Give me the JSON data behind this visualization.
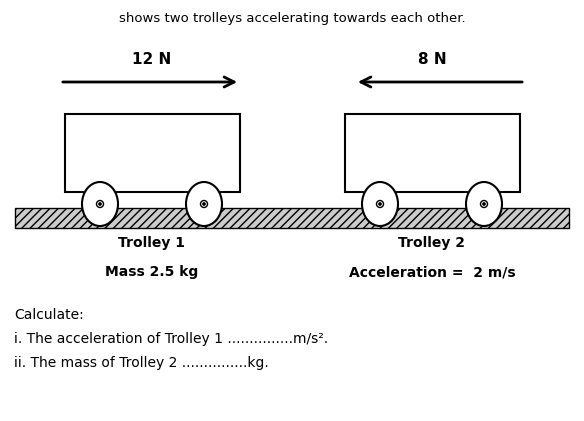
{
  "title_text": "shows two trolleys accelerating towards each other.",
  "force1_label": "12 N",
  "force2_label": "8 N",
  "trolley1_label": "Trolley 1",
  "trolley2_label": "Trolley 2",
  "mass_label": "Mass 2.5 kg",
  "accel_label": "Acceleration =  2 m/s",
  "calc_line0": "Calculate:",
  "calc_line1": "i. The acceleration of Trolley 1 ...............m/s².",
  "calc_line2": "ii. The mass of Trolley 2 ...............kg.",
  "bg_color": "#ffffff",
  "fig_width": 5.84,
  "fig_height": 4.21,
  "dpi": 100
}
